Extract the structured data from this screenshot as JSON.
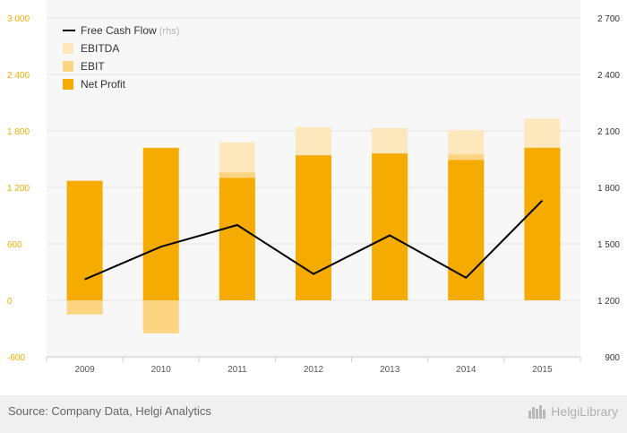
{
  "chart_data": {
    "type": "bar",
    "categories": [
      "2009",
      "2010",
      "2011",
      "2012",
      "2013",
      "2014",
      "2015"
    ],
    "series": [
      {
        "name": "EBITDA",
        "role": "bar-left",
        "color": "#fde8bd",
        "values": [
          -150,
          -350,
          1680,
          1840,
          1830,
          1810,
          1930
        ]
      },
      {
        "name": "EBIT",
        "role": "bar-left",
        "color": "#fdd482",
        "values": [
          -150,
          -350,
          1360,
          1540,
          1560,
          1550,
          1600
        ]
      },
      {
        "name": "Net Profit",
        "role": "bar-left",
        "color": "#f5ab00",
        "values": [
          1270,
          1620,
          1300,
          1540,
          1560,
          1490,
          1620
        ]
      },
      {
        "name": "Free Cash Flow",
        "name_note": "(rhs)",
        "role": "line-right",
        "color": "#000000",
        "values": [
          1311,
          1485,
          1600,
          1340,
          1545,
          1320,
          1730
        ]
      }
    ],
    "yleft": {
      "ticks": [
        "3 000",
        "2 400",
        "1 800",
        "1 200",
        "600",
        "0",
        "-600"
      ],
      "ylim": [
        -600,
        3000
      ],
      "tick_color": "#f5ab00"
    },
    "yright": {
      "ticks": [
        "2 700",
        "2 400",
        "2 100",
        "1 800",
        "1 500",
        "1 200",
        "900"
      ],
      "ylim": [
        900,
        2700
      ],
      "tick_color": "#333333"
    },
    "xlabel": "",
    "ylabel": "",
    "grid": true,
    "legend": {
      "position": "top-left",
      "items": [
        "Free Cash Flow",
        "EBITDA",
        "EBIT",
        "Net Profit"
      ]
    }
  },
  "footer": {
    "source": "Source: Company Data, Helgi Analytics",
    "brand": "HelgiLibrary"
  }
}
